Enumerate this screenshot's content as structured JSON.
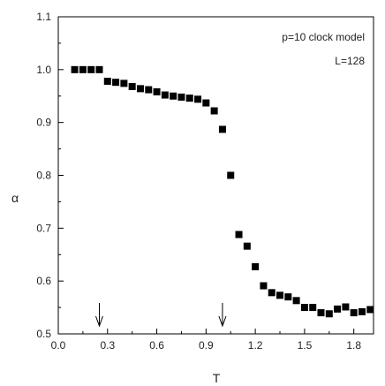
{
  "chart_data": {
    "type": "scatter",
    "legend_position": "top-right",
    "annotation_lines": [
      "p=10 clock model",
      "L=128"
    ],
    "xlabel": "T",
    "ylabel": "α",
    "xlim": [
      0.0,
      1.92
    ],
    "ylim": [
      0.5,
      1.1
    ],
    "x_ticks": [
      "0.0",
      "0.3",
      "0.6",
      "0.9",
      "1.2",
      "1.5",
      "1.8"
    ],
    "x_tick_values": [
      0.0,
      0.3,
      0.6,
      0.9,
      1.2,
      1.5,
      1.8
    ],
    "y_ticks": [
      "0.5",
      "0.6",
      "0.7",
      "0.8",
      "0.9",
      "1.0",
      "1.1"
    ],
    "y_tick_values": [
      0.5,
      0.6,
      0.7,
      0.8,
      0.9,
      1.0,
      1.1
    ],
    "arrows_at_x": [
      0.25,
      1.0
    ],
    "series": [
      {
        "marker": "square",
        "color": "#000000",
        "x": [
          0.1,
          0.15,
          0.2,
          0.25,
          0.3,
          0.35,
          0.4,
          0.45,
          0.5,
          0.55,
          0.6,
          0.65,
          0.7,
          0.75,
          0.8,
          0.85,
          0.9,
          0.95,
          1.0,
          1.05,
          1.1,
          1.15,
          1.2,
          1.25,
          1.3,
          1.35,
          1.4,
          1.45,
          1.5,
          1.55,
          1.6,
          1.65,
          1.7,
          1.75,
          1.8,
          1.85,
          1.9
        ],
        "y": [
          1.0,
          1.0,
          1.0,
          1.0,
          0.978,
          0.976,
          0.974,
          0.968,
          0.964,
          0.962,
          0.958,
          0.952,
          0.95,
          0.948,
          0.946,
          0.944,
          0.937,
          0.922,
          0.887,
          0.8,
          0.688,
          0.666,
          0.627,
          0.591,
          0.578,
          0.573,
          0.57,
          0.563,
          0.55,
          0.55,
          0.54,
          0.538,
          0.547,
          0.551,
          0.54,
          0.542,
          0.546
        ]
      }
    ]
  }
}
